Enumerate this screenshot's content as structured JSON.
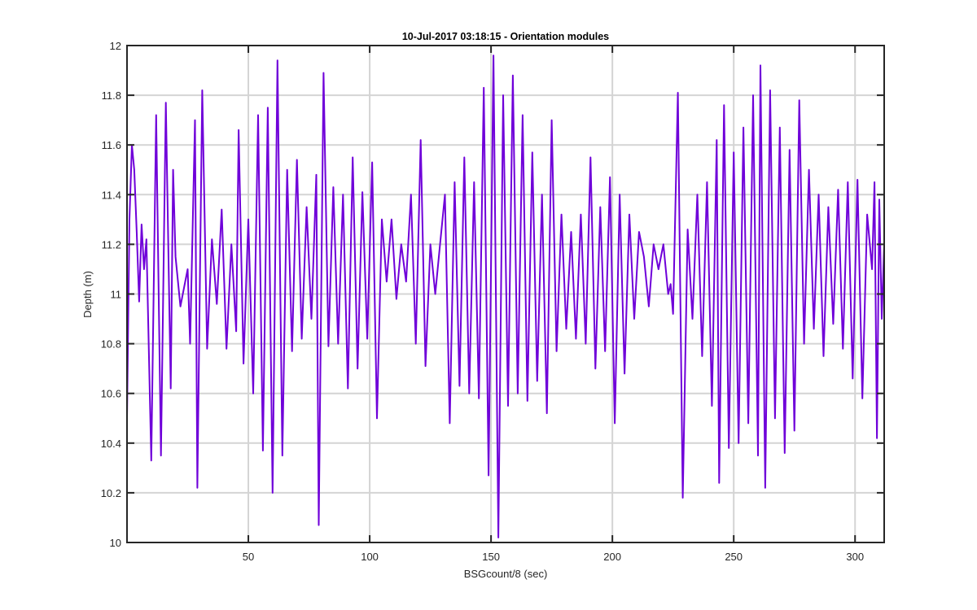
{
  "chart_data": {
    "type": "line",
    "title": "10-Jul-2017 03:18:15 - Orientation modules",
    "xlabel": "BSGcount/8 (sec)",
    "ylabel": "Depth (m)",
    "xlim": [
      0,
      312
    ],
    "ylim": [
      10,
      12
    ],
    "xticks": [
      50,
      100,
      150,
      200,
      250,
      300
    ],
    "xtick_labels": [
      "50",
      "100",
      "150",
      "200",
      "250",
      "300"
    ],
    "yticks": [
      10,
      10.2,
      10.4,
      10.6,
      10.8,
      11,
      11.2,
      11.4,
      11.6,
      11.8,
      12
    ],
    "ytick_labels": [
      "10",
      "10.2",
      "10.4",
      "10.6",
      "10.8",
      "11",
      "11.2",
      "11.4",
      "11.6",
      "11.8",
      "12"
    ],
    "grid": true,
    "series": [
      {
        "name": "Depth",
        "color": "#6f00d9",
        "points": [
          [
            0,
            10.5
          ],
          [
            1,
            11.3
          ],
          [
            2,
            11.6
          ],
          [
            3,
            11.5
          ],
          [
            4,
            11.25
          ],
          [
            5,
            10.97
          ],
          [
            6,
            11.28
          ],
          [
            7,
            11.1
          ],
          [
            8,
            11.22
          ],
          [
            10,
            10.33
          ],
          [
            12,
            11.72
          ],
          [
            14,
            10.35
          ],
          [
            16,
            11.77
          ],
          [
            18,
            10.62
          ],
          [
            19,
            11.5
          ],
          [
            20,
            11.15
          ],
          [
            22,
            10.95
          ],
          [
            24,
            11.05
          ],
          [
            25,
            11.1
          ],
          [
            26,
            10.8
          ],
          [
            28,
            11.7
          ],
          [
            29,
            10.22
          ],
          [
            31,
            11.82
          ],
          [
            33,
            10.78
          ],
          [
            35,
            11.22
          ],
          [
            37,
            10.96
          ],
          [
            39,
            11.34
          ],
          [
            41,
            10.78
          ],
          [
            43,
            11.2
          ],
          [
            45,
            10.85
          ],
          [
            46,
            11.66
          ],
          [
            48,
            10.72
          ],
          [
            50,
            11.3
          ],
          [
            52,
            10.6
          ],
          [
            54,
            11.72
          ],
          [
            56,
            10.37
          ],
          [
            58,
            11.75
          ],
          [
            60,
            10.2
          ],
          [
            62,
            11.94
          ],
          [
            64,
            10.35
          ],
          [
            66,
            11.5
          ],
          [
            68,
            10.77
          ],
          [
            70,
            11.54
          ],
          [
            72,
            10.82
          ],
          [
            74,
            11.35
          ],
          [
            76,
            10.9
          ],
          [
            78,
            11.48
          ],
          [
            79,
            10.07
          ],
          [
            81,
            11.89
          ],
          [
            83,
            10.79
          ],
          [
            85,
            11.43
          ],
          [
            87,
            10.8
          ],
          [
            89,
            11.4
          ],
          [
            91,
            10.62
          ],
          [
            93,
            11.55
          ],
          [
            95,
            10.7
          ],
          [
            97,
            11.41
          ],
          [
            99,
            10.82
          ],
          [
            101,
            11.53
          ],
          [
            103,
            10.5
          ],
          [
            105,
            11.3
          ],
          [
            107,
            11.05
          ],
          [
            109,
            11.3
          ],
          [
            111,
            10.98
          ],
          [
            113,
            11.2
          ],
          [
            115,
            11.05
          ],
          [
            117,
            11.4
          ],
          [
            119,
            10.8
          ],
          [
            121,
            11.62
          ],
          [
            123,
            10.71
          ],
          [
            125,
            11.2
          ],
          [
            127,
            11.0
          ],
          [
            129,
            11.2
          ],
          [
            131,
            11.4
          ],
          [
            133,
            10.48
          ],
          [
            135,
            11.45
          ],
          [
            137,
            10.63
          ],
          [
            139,
            11.55
          ],
          [
            141,
            10.6
          ],
          [
            143,
            11.45
          ],
          [
            145,
            10.58
          ],
          [
            147,
            11.83
          ],
          [
            149,
            10.27
          ],
          [
            151,
            11.96
          ],
          [
            153,
            10.02
          ],
          [
            155,
            11.8
          ],
          [
            157,
            10.55
          ],
          [
            159,
            11.88
          ],
          [
            161,
            10.6
          ],
          [
            163,
            11.72
          ],
          [
            165,
            10.57
          ],
          [
            167,
            11.57
          ],
          [
            169,
            10.65
          ],
          [
            171,
            11.4
          ],
          [
            173,
            10.52
          ],
          [
            175,
            11.7
          ],
          [
            177,
            10.77
          ],
          [
            179,
            11.32
          ],
          [
            181,
            10.86
          ],
          [
            183,
            11.25
          ],
          [
            185,
            10.82
          ],
          [
            187,
            11.32
          ],
          [
            189,
            10.8
          ],
          [
            191,
            11.55
          ],
          [
            193,
            10.7
          ],
          [
            195,
            11.35
          ],
          [
            197,
            10.77
          ],
          [
            199,
            11.47
          ],
          [
            201,
            10.48
          ],
          [
            203,
            11.4
          ],
          [
            205,
            10.68
          ],
          [
            207,
            11.32
          ],
          [
            209,
            10.9
          ],
          [
            211,
            11.25
          ],
          [
            213,
            11.15
          ],
          [
            215,
            10.95
          ],
          [
            217,
            11.2
          ],
          [
            219,
            11.1
          ],
          [
            221,
            11.2
          ],
          [
            223,
            11.0
          ],
          [
            224,
            11.04
          ],
          [
            225,
            10.92
          ],
          [
            227,
            11.81
          ],
          [
            229,
            10.18
          ],
          [
            231,
            11.26
          ],
          [
            233,
            10.9
          ],
          [
            235,
            11.4
          ],
          [
            237,
            10.75
          ],
          [
            239,
            11.45
          ],
          [
            241,
            10.55
          ],
          [
            243,
            11.62
          ],
          [
            244,
            10.24
          ],
          [
            246,
            11.76
          ],
          [
            248,
            10.38
          ],
          [
            250,
            11.57
          ],
          [
            252,
            10.4
          ],
          [
            254,
            11.67
          ],
          [
            256,
            10.48
          ],
          [
            258,
            11.8
          ],
          [
            260,
            10.35
          ],
          [
            261,
            11.92
          ],
          [
            263,
            10.22
          ],
          [
            265,
            11.82
          ],
          [
            267,
            10.5
          ],
          [
            269,
            11.67
          ],
          [
            271,
            10.36
          ],
          [
            273,
            11.58
          ],
          [
            275,
            10.45
          ],
          [
            277,
            11.78
          ],
          [
            279,
            10.8
          ],
          [
            281,
            11.5
          ],
          [
            283,
            10.86
          ],
          [
            285,
            11.4
          ],
          [
            287,
            10.75
          ],
          [
            289,
            11.35
          ],
          [
            291,
            10.88
          ],
          [
            293,
            11.42
          ],
          [
            295,
            10.78
          ],
          [
            297,
            11.45
          ],
          [
            299,
            10.66
          ],
          [
            301,
            11.46
          ],
          [
            303,
            10.58
          ],
          [
            305,
            11.32
          ],
          [
            307,
            11.1
          ],
          [
            308,
            11.45
          ],
          [
            309,
            10.42
          ],
          [
            310,
            11.38
          ],
          [
            311,
            10.9
          ],
          [
            312,
            11.2
          ]
        ]
      }
    ]
  }
}
